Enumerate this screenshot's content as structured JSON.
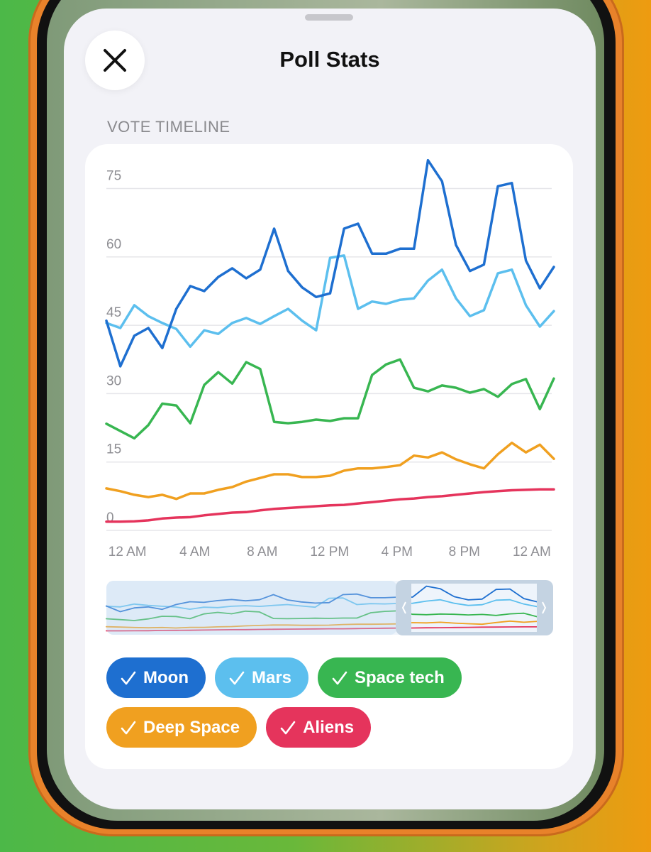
{
  "header": {
    "title": "Poll Stats"
  },
  "chart_data": {
    "type": "line",
    "title": "VOTE TIMELINE",
    "x": [
      -1.25,
      -0.42,
      0.41,
      1.24,
      2.07,
      2.9,
      3.73,
      4.56,
      5.39,
      6.22,
      7.05,
      7.88,
      8.71,
      9.54,
      10.37,
      11.2,
      12.03,
      12.86,
      13.69,
      14.52,
      15.35,
      16.18,
      17.01,
      17.84,
      18.67,
      19.5,
      20.33,
      21.16,
      21.99,
      22.82,
      23.65,
      24.48,
      25.31
    ],
    "xlim": [
      -1.25,
      25.31
    ],
    "xticks": [
      {
        "value": 0,
        "label": "12 AM"
      },
      {
        "value": 4,
        "label": "4 AM"
      },
      {
        "value": 8,
        "label": "8 AM"
      },
      {
        "value": 12,
        "label": "12 PM"
      },
      {
        "value": 16,
        "label": "4 PM"
      },
      {
        "value": 20,
        "label": "8 PM"
      },
      {
        "value": 24,
        "label": "12 AM"
      }
    ],
    "ylim": [
      0,
      82
    ],
    "yticks": [
      0,
      15,
      30,
      45,
      60,
      75
    ],
    "grid": true,
    "series": [
      {
        "name": "Moon",
        "color": "#1e6fd0",
        "values": [
          46,
          36,
          42.7,
          44.4,
          40,
          48.6,
          53.6,
          52.5,
          55.6,
          57.5,
          55.3,
          57.2,
          66.2,
          56.9,
          53.3,
          51.2,
          52,
          66.2,
          67.3,
          60.7,
          60.7,
          61.8,
          61.8,
          81.2,
          76.6,
          62.6,
          56.9,
          58.3,
          75.5,
          76.2,
          59.2,
          53.1,
          57.8
        ]
      },
      {
        "name": "Mars",
        "color": "#5cbfee",
        "values": [
          45.5,
          44.4,
          49.4,
          47,
          45.5,
          44.2,
          40.3,
          43.9,
          43.1,
          45.5,
          46.6,
          45.3,
          47,
          48.6,
          46,
          43.9,
          59.8,
          60.3,
          48.6,
          50.2,
          49.7,
          50.6,
          50.9,
          54.8,
          57.2,
          50.9,
          47,
          48.3,
          56.4,
          57.2,
          49.4,
          44.7,
          48.1
        ]
      },
      {
        "name": "Space tech",
        "color": "#38b651",
        "values": [
          23.4,
          21.8,
          20.2,
          23.1,
          27.8,
          27.4,
          23.5,
          31.9,
          34.7,
          32.2,
          36.9,
          35.4,
          23.8,
          23.5,
          23.8,
          24.3,
          24,
          24.6,
          24.6,
          34.1,
          36.4,
          37.5,
          31.3,
          30.5,
          31.8,
          31.3,
          30.2,
          31,
          29.3,
          32.1,
          33.2,
          26.6,
          33.3
        ]
      },
      {
        "name": "Deep Space",
        "color": "#f0a020",
        "values": [
          9.2,
          8.6,
          7.8,
          7.3,
          7.8,
          6.9,
          8.1,
          8.1,
          8.9,
          9.5,
          10.7,
          11.5,
          12.3,
          12.3,
          11.7,
          11.7,
          12,
          13.1,
          13.6,
          13.6,
          13.9,
          14.3,
          16.4,
          16,
          17.1,
          15.6,
          14.5,
          13.6,
          16.7,
          19.2,
          17.1,
          18.8,
          15.7
        ]
      },
      {
        "name": "Aliens",
        "color": "#e5345c",
        "values": [
          1.9,
          1.9,
          2,
          2.2,
          2.6,
          2.8,
          2.9,
          3.3,
          3.6,
          3.9,
          4,
          4.4,
          4.7,
          4.9,
          5.1,
          5.3,
          5.5,
          5.6,
          5.9,
          6.2,
          6.5,
          6.8,
          7,
          7.3,
          7.5,
          7.8,
          8.1,
          8.4,
          8.6,
          8.8,
          8.9,
          9,
          9
        ]
      }
    ]
  }
}
